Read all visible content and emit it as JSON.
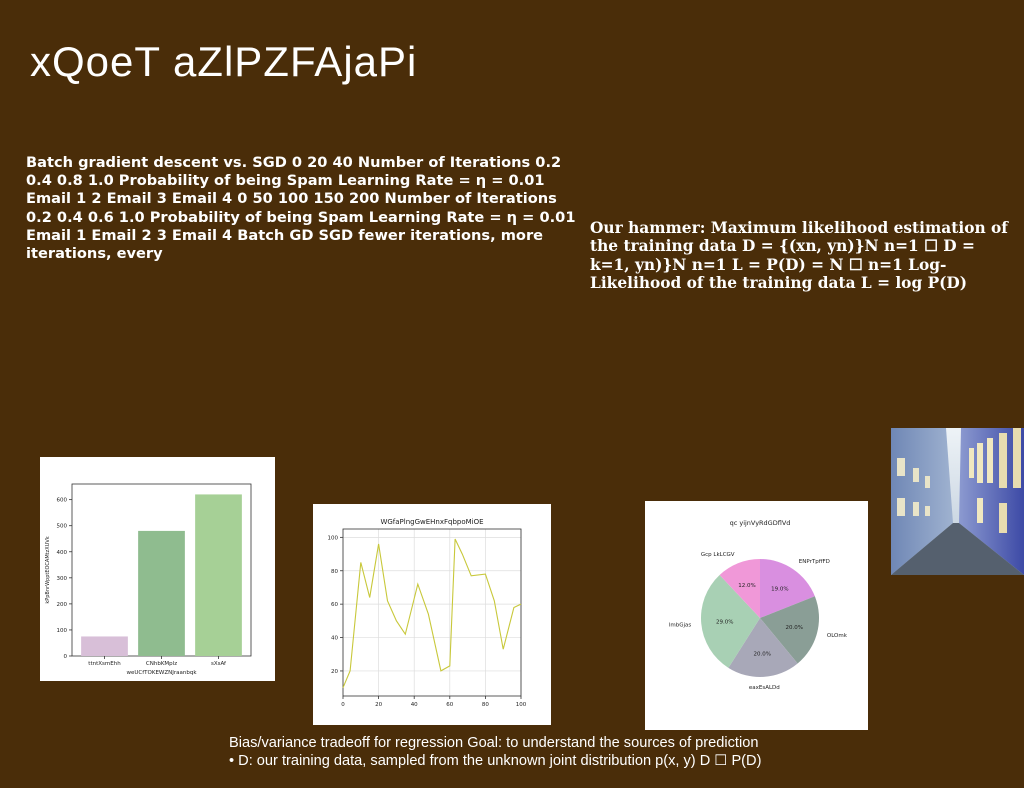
{
  "slide": {
    "title": "xQoeT aZlPZFAjaPi",
    "text_left": "Batch gradient descent vs. SGD 0 20 40 Number of Iterations 0.2 0.4 0.8 1.0 Probability of being Spam Learning Rate = η = 0.01 Email 1 2 Email 3 Email 4 0 50 100 150 200 Number of Iterations 0.2 0.4 0.6 1.0 Probability of being Spam Learning Rate = η = 0.01 Email 1 Email 2 3 Email 4 Batch GD SGD fewer iterations, more iterations, every",
    "text_right": "Our hammer: Maximum likelihood estimation of the training data D = {(xn, yn)}N n=1 ☐ D = k=1, yn)}N n=1 L = P(D) = N ☐ n=1 Log-Likelihood of the training data L = log P(D)",
    "text_bottom_line1": "Bias/variance tradeoff for regression Goal: to understand the sources of prediction",
    "text_bottom_line2": "• D: our training data, sampled from the unknown joint distribution p(x, y) D ☐ P(D)"
  },
  "chart_data": [
    {
      "type": "bar",
      "title": "",
      "xlabel": "weUCfTOKEWZNJraanbqk",
      "ylabel": "kPpBnrWpptEOCAMtzXUVk",
      "categories": [
        "ttntXsmEhh",
        "CNhbKMplz",
        "sXsAf"
      ],
      "values": [
        75,
        480,
        620
      ],
      "colors": [
        "#d8bfd8",
        "#8fbc8f",
        "#a6d096"
      ],
      "ylim": [
        0,
        660
      ],
      "yticks": [
        0,
        100,
        200,
        300,
        400,
        500,
        600
      ]
    },
    {
      "type": "line",
      "title": "WGfaPlngGwEHnxFqbpoMiOE",
      "xlabel": "",
      "ylabel": "",
      "x": [
        0,
        4,
        10,
        15,
        20,
        25,
        30,
        35,
        42,
        48,
        55,
        60,
        63,
        67,
        72,
        80,
        85,
        90,
        96,
        100
      ],
      "y": [
        10,
        20,
        85,
        64,
        96,
        62,
        50,
        42,
        72,
        54,
        20,
        23,
        99,
        90,
        77,
        78,
        62,
        33,
        58,
        60
      ],
      "color": "#c8c83a",
      "xlim": [
        0,
        100
      ],
      "ylim": [
        5,
        105
      ],
      "xticks": [
        0,
        20,
        40,
        60,
        80,
        100
      ],
      "yticks": [
        20,
        40,
        60,
        80,
        100
      ],
      "grid": true
    },
    {
      "type": "pie",
      "title": "qc yijnVyRdGDflVd",
      "slices": [
        {
          "label": "ENPrTpffFD",
          "value": 19.0,
          "pct": "19.0%",
          "color": "#d98fe0"
        },
        {
          "label": "OLOmk",
          "value": 20.0,
          "pct": "20.0%",
          "color": "#8a9e96"
        },
        {
          "label": "eaxEsALDd",
          "value": 20.0,
          "pct": "20.0%",
          "color": "#a8a8b8"
        },
        {
          "label": "lmbGjas",
          "value": 29.0,
          "pct": "29.0%",
          "color": "#a8d0b4"
        },
        {
          "label": "Gcp LkLCGV",
          "value": 12.0,
          "pct": "12.0%",
          "color": "#f098d8"
        }
      ]
    }
  ],
  "photo": {
    "subject": "narrow-street-photo"
  }
}
